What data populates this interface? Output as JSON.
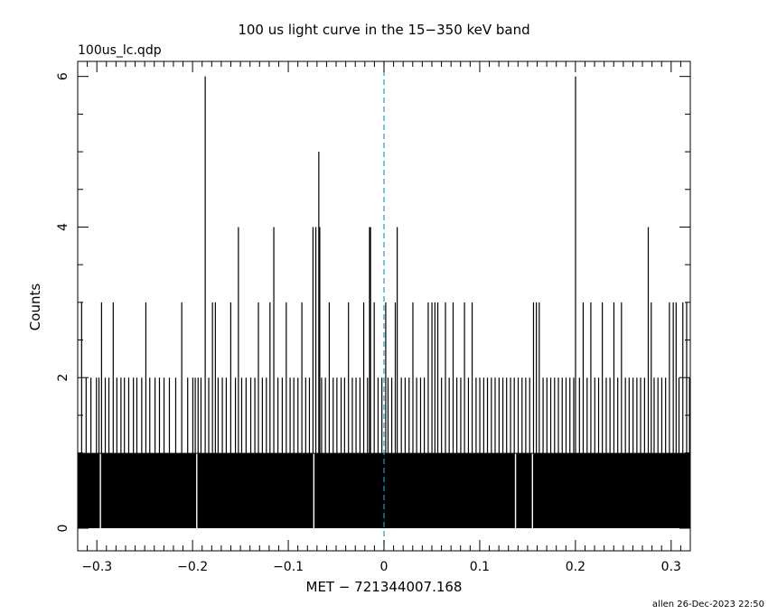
{
  "chart_data": {
    "type": "bar",
    "title": "100 us light curve in the 15−350 keV band",
    "file_label": "100us_lc.qdp",
    "xlabel": "MET − 721344007.168",
    "ylabel": "Counts",
    "xlim": [
      -0.32,
      0.32
    ],
    "ylim": [
      -0.3,
      6.2
    ],
    "xticks": [
      {
        "value": -0.3,
        "label": "−0.3"
      },
      {
        "value": -0.2,
        "label": "−0.2"
      },
      {
        "value": -0.1,
        "label": "−0.1"
      },
      {
        "value": 0,
        "label": "0"
      },
      {
        "value": 0.1,
        "label": "0.1"
      },
      {
        "value": 0.2,
        "label": "0.2"
      },
      {
        "value": 0.3,
        "label": "0.3"
      }
    ],
    "yticks": [
      {
        "value": 0,
        "label": "0"
      },
      {
        "value": 2,
        "label": "2"
      },
      {
        "value": 4,
        "label": "4"
      },
      {
        "value": 6,
        "label": "6"
      }
    ],
    "reference_line": {
      "x": 0,
      "color": "#1a9ad6",
      "style": "dashed"
    },
    "bin_width": 0.0001,
    "baseline_counts": 1,
    "zero_bins": [
      -0.2963,
      -0.1956,
      -0.0733,
      0.1374,
      0.1551
    ],
    "spikes": [
      {
        "x": -0.3159,
        "count": 3
      },
      {
        "x": -0.3112,
        "count": 2
      },
      {
        "x": -0.3062,
        "count": 2
      },
      {
        "x": -0.3004,
        "count": 2
      },
      {
        "x": -0.2978,
        "count": 2
      },
      {
        "x": -0.2951,
        "count": 3
      },
      {
        "x": -0.2912,
        "count": 2
      },
      {
        "x": -0.2874,
        "count": 2
      },
      {
        "x": -0.2829,
        "count": 3
      },
      {
        "x": -0.2791,
        "count": 2
      },
      {
        "x": -0.2748,
        "count": 2
      },
      {
        "x": -0.2712,
        "count": 2
      },
      {
        "x": -0.2667,
        "count": 2
      },
      {
        "x": -0.2618,
        "count": 2
      },
      {
        "x": -0.2582,
        "count": 2
      },
      {
        "x": -0.2531,
        "count": 2
      },
      {
        "x": -0.2488,
        "count": 3
      },
      {
        "x": -0.2447,
        "count": 2
      },
      {
        "x": -0.2392,
        "count": 2
      },
      {
        "x": -0.2346,
        "count": 2
      },
      {
        "x": -0.2298,
        "count": 2
      },
      {
        "x": -0.2242,
        "count": 2
      },
      {
        "x": -0.2176,
        "count": 2
      },
      {
        "x": -0.2113,
        "count": 3
      },
      {
        "x": -0.2051,
        "count": 2
      },
      {
        "x": -0.1997,
        "count": 2
      },
      {
        "x": -0.1972,
        "count": 2
      },
      {
        "x": -0.1942,
        "count": 2
      },
      {
        "x": -0.1912,
        "count": 2
      },
      {
        "x": -0.1868,
        "count": 6
      },
      {
        "x": -0.1831,
        "count": 2
      },
      {
        "x": -0.1792,
        "count": 3
      },
      {
        "x": -0.1762,
        "count": 3
      },
      {
        "x": -0.1733,
        "count": 2
      },
      {
        "x": -0.1689,
        "count": 2
      },
      {
        "x": -0.1648,
        "count": 2
      },
      {
        "x": -0.1601,
        "count": 3
      },
      {
        "x": -0.1552,
        "count": 2
      },
      {
        "x": -0.1521,
        "count": 4
      },
      {
        "x": -0.1487,
        "count": 2
      },
      {
        "x": -0.1441,
        "count": 2
      },
      {
        "x": -0.1392,
        "count": 2
      },
      {
        "x": -0.1349,
        "count": 2
      },
      {
        "x": -0.1312,
        "count": 3
      },
      {
        "x": -0.1271,
        "count": 2
      },
      {
        "x": -0.1229,
        "count": 2
      },
      {
        "x": -0.1191,
        "count": 3
      },
      {
        "x": -0.1151,
        "count": 4
      },
      {
        "x": -0.1108,
        "count": 2
      },
      {
        "x": -0.1063,
        "count": 2
      },
      {
        "x": -0.1021,
        "count": 3
      },
      {
        "x": -0.0981,
        "count": 2
      },
      {
        "x": -0.0942,
        "count": 2
      },
      {
        "x": -0.0899,
        "count": 2
      },
      {
        "x": -0.0858,
        "count": 3
      },
      {
        "x": -0.0818,
        "count": 2
      },
      {
        "x": -0.0779,
        "count": 2
      },
      {
        "x": -0.0742,
        "count": 4
      },
      {
        "x": -0.0712,
        "count": 4
      },
      {
        "x": -0.0681,
        "count": 5
      },
      {
        "x": -0.0671,
        "count": 4
      },
      {
        "x": -0.0652,
        "count": 2
      },
      {
        "x": -0.0612,
        "count": 2
      },
      {
        "x": -0.0572,
        "count": 3
      },
      {
        "x": -0.0531,
        "count": 2
      },
      {
        "x": -0.0492,
        "count": 2
      },
      {
        "x": -0.0448,
        "count": 2
      },
      {
        "x": -0.0412,
        "count": 2
      },
      {
        "x": -0.0371,
        "count": 3
      },
      {
        "x": -0.0331,
        "count": 2
      },
      {
        "x": -0.0292,
        "count": 2
      },
      {
        "x": -0.0251,
        "count": 2
      },
      {
        "x": -0.0212,
        "count": 3
      },
      {
        "x": -0.0172,
        "count": 2
      },
      {
        "x": -0.0151,
        "count": 4
      },
      {
        "x": -0.0141,
        "count": 4
      },
      {
        "x": -0.0102,
        "count": 3
      },
      {
        "x": -0.0062,
        "count": 2
      },
      {
        "x": -0.0022,
        "count": 2
      },
      {
        "x": 0.0018,
        "count": 3
      },
      {
        "x": 0.0042,
        "count": 2
      },
      {
        "x": 0.0081,
        "count": 2
      },
      {
        "x": 0.0118,
        "count": 3
      },
      {
        "x": 0.0138,
        "count": 4
      },
      {
        "x": 0.0181,
        "count": 2
      },
      {
        "x": 0.0221,
        "count": 2
      },
      {
        "x": 0.0262,
        "count": 2
      },
      {
        "x": 0.0302,
        "count": 3
      },
      {
        "x": 0.0341,
        "count": 2
      },
      {
        "x": 0.0382,
        "count": 2
      },
      {
        "x": 0.0421,
        "count": 2
      },
      {
        "x": 0.0462,
        "count": 3
      },
      {
        "x": 0.0501,
        "count": 3
      },
      {
        "x": 0.0532,
        "count": 3
      },
      {
        "x": 0.0562,
        "count": 3
      },
      {
        "x": 0.0601,
        "count": 2
      },
      {
        "x": 0.0642,
        "count": 3
      },
      {
        "x": 0.0681,
        "count": 2
      },
      {
        "x": 0.0722,
        "count": 3
      },
      {
        "x": 0.0761,
        "count": 2
      },
      {
        "x": 0.0802,
        "count": 2
      },
      {
        "x": 0.0841,
        "count": 3
      },
      {
        "x": 0.0882,
        "count": 2
      },
      {
        "x": 0.0921,
        "count": 3
      },
      {
        "x": 0.0962,
        "count": 2
      },
      {
        "x": 0.1001,
        "count": 2
      },
      {
        "x": 0.1042,
        "count": 2
      },
      {
        "x": 0.1081,
        "count": 2
      },
      {
        "x": 0.1122,
        "count": 2
      },
      {
        "x": 0.1161,
        "count": 2
      },
      {
        "x": 0.1202,
        "count": 2
      },
      {
        "x": 0.1242,
        "count": 2
      },
      {
        "x": 0.1281,
        "count": 2
      },
      {
        "x": 0.1322,
        "count": 2
      },
      {
        "x": 0.1361,
        "count": 2
      },
      {
        "x": 0.1402,
        "count": 2
      },
      {
        "x": 0.1442,
        "count": 2
      },
      {
        "x": 0.1481,
        "count": 2
      },
      {
        "x": 0.1522,
        "count": 2
      },
      {
        "x": 0.1562,
        "count": 3
      },
      {
        "x": 0.1592,
        "count": 3
      },
      {
        "x": 0.1622,
        "count": 3
      },
      {
        "x": 0.1662,
        "count": 2
      },
      {
        "x": 0.1702,
        "count": 2
      },
      {
        "x": 0.1742,
        "count": 2
      },
      {
        "x": 0.1782,
        "count": 2
      },
      {
        "x": 0.1822,
        "count": 2
      },
      {
        "x": 0.1862,
        "count": 2
      },
      {
        "x": 0.1902,
        "count": 2
      },
      {
        "x": 0.1942,
        "count": 2
      },
      {
        "x": 0.1982,
        "count": 2
      },
      {
        "x": 0.2001,
        "count": 6
      },
      {
        "x": 0.2042,
        "count": 2
      },
      {
        "x": 0.2081,
        "count": 3
      },
      {
        "x": 0.2122,
        "count": 2
      },
      {
        "x": 0.2161,
        "count": 3
      },
      {
        "x": 0.2202,
        "count": 2
      },
      {
        "x": 0.2242,
        "count": 2
      },
      {
        "x": 0.2281,
        "count": 3
      },
      {
        "x": 0.2322,
        "count": 2
      },
      {
        "x": 0.2361,
        "count": 2
      },
      {
        "x": 0.2402,
        "count": 3
      },
      {
        "x": 0.2442,
        "count": 2
      },
      {
        "x": 0.2481,
        "count": 3
      },
      {
        "x": 0.2522,
        "count": 2
      },
      {
        "x": 0.2561,
        "count": 2
      },
      {
        "x": 0.2602,
        "count": 2
      },
      {
        "x": 0.2642,
        "count": 2
      },
      {
        "x": 0.2681,
        "count": 2
      },
      {
        "x": 0.2722,
        "count": 2
      },
      {
        "x": 0.2761,
        "count": 4
      },
      {
        "x": 0.2792,
        "count": 3
      },
      {
        "x": 0.2822,
        "count": 2
      },
      {
        "x": 0.2862,
        "count": 2
      },
      {
        "x": 0.2902,
        "count": 2
      },
      {
        "x": 0.2942,
        "count": 2
      },
      {
        "x": 0.2982,
        "count": 3
      },
      {
        "x": 0.3022,
        "count": 3
      },
      {
        "x": 0.3052,
        "count": 3
      },
      {
        "x": 0.3082,
        "count": 2
      },
      {
        "x": 0.3122,
        "count": 3
      },
      {
        "x": 0.3162,
        "count": 3
      },
      {
        "x": 0.3192,
        "count": 2
      }
    ],
    "grid": false,
    "legend": "none"
  },
  "footer": "allen 26-Dec-2023 22:50"
}
